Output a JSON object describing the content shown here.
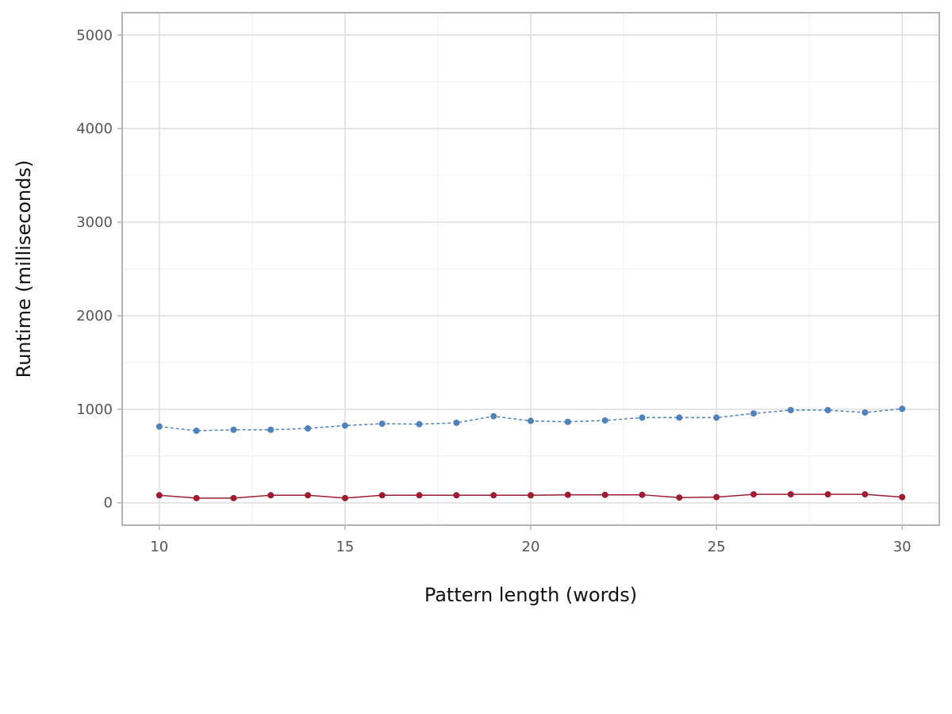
{
  "chart_data": {
    "type": "line",
    "title": "",
    "xlabel": "Pattern length (words)",
    "ylabel": "Runtime (milliseconds)",
    "xlim": [
      9,
      31
    ],
    "ylim": [
      -240,
      5240
    ],
    "x_ticks": [
      10,
      15,
      20,
      25,
      30
    ],
    "x_tick_labels": [
      "10",
      "15",
      "20",
      "25",
      "30"
    ],
    "y_ticks": [
      0,
      1000,
      2000,
      3000,
      4000,
      5000
    ],
    "y_tick_labels": [
      "0",
      "1000",
      "2000",
      "3000",
      "4000",
      "5000"
    ],
    "grid": true,
    "legend": "none",
    "x": [
      10,
      11,
      12,
      13,
      14,
      15,
      16,
      17,
      18,
      19,
      20,
      21,
      22,
      23,
      24,
      25,
      26,
      27,
      28,
      29,
      30
    ],
    "series": [
      {
        "color": "#4f81bd",
        "line_style": "dashed",
        "values": [
          815,
          770,
          780,
          780,
          795,
          825,
          845,
          840,
          855,
          925,
          875,
          865,
          880,
          910,
          910,
          910,
          955,
          990,
          990,
          965,
          1005
        ]
      },
      {
        "color": "#9e1b32",
        "line_style": "solid",
        "values": [
          80,
          50,
          50,
          80,
          80,
          50,
          80,
          80,
          80,
          80,
          80,
          85,
          85,
          85,
          55,
          60,
          90,
          90,
          90,
          90,
          60
        ]
      }
    ]
  }
}
